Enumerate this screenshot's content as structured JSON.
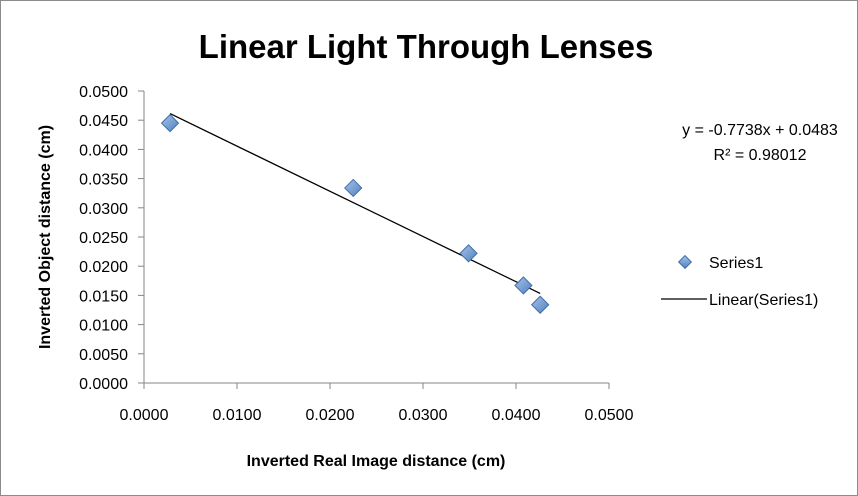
{
  "chart_data": {
    "type": "scatter",
    "title": "Linear Light Through Lenses",
    "xlabel": "Inverted Real Image distance (cm)",
    "ylabel": "Inverted Object distance (cm)",
    "xlim": [
      0,
      0.05
    ],
    "ylim": [
      0,
      0.05
    ],
    "x_ticks": [
      "0.0000",
      "0.0100",
      "0.0200",
      "0.0300",
      "0.0400",
      "0.0500"
    ],
    "y_ticks": [
      "0.0000",
      "0.0050",
      "0.0100",
      "0.0150",
      "0.0200",
      "0.0250",
      "0.0300",
      "0.0350",
      "0.0400",
      "0.0450",
      "0.0500"
    ],
    "grid": false,
    "legend_position": "right",
    "series": [
      {
        "name": "Series1",
        "marker": "diamond",
        "color": "#4F81BD",
        "x": [
          0.0028,
          0.0225,
          0.0349,
          0.0408,
          0.0426
        ],
        "y": [
          0.0445,
          0.0334,
          0.0222,
          0.0167,
          0.0134
        ]
      }
    ],
    "trendline": {
      "name": "Linear(Series1)",
      "slope": -0.7738,
      "intercept": 0.0483,
      "x_range": [
        0.0028,
        0.0426
      ],
      "color": "#000000",
      "equation": "y = -0.7738x + 0.0483",
      "r_squared": "R² = 0.98012"
    }
  }
}
